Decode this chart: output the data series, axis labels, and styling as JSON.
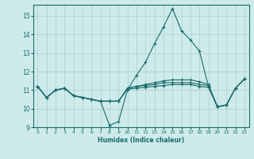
{
  "xlabel": "Humidex (Indice chaleur)",
  "bg_color": "#ceeaea",
  "grid_color": "#afd4d4",
  "line_color": "#1a6b6b",
  "xlim": [
    -0.5,
    23.5
  ],
  "ylim": [
    9,
    15.6
  ],
  "yticks": [
    9,
    10,
    11,
    12,
    13,
    14,
    15
  ],
  "xticks": [
    0,
    1,
    2,
    3,
    4,
    5,
    6,
    7,
    8,
    9,
    10,
    11,
    12,
    13,
    14,
    15,
    16,
    17,
    18,
    19,
    20,
    21,
    22,
    23
  ],
  "lines": [
    {
      "x": [
        0,
        1,
        2,
        3,
        4,
        5,
        6,
        7,
        8,
        9,
        10,
        11,
        12,
        13,
        14,
        15,
        16,
        17,
        18,
        19,
        20,
        21,
        22,
        23
      ],
      "y": [
        11.2,
        10.6,
        11.0,
        11.1,
        10.7,
        10.6,
        10.5,
        10.4,
        9.1,
        9.3,
        11.0,
        11.8,
        12.5,
        13.5,
        14.4,
        15.4,
        14.2,
        13.7,
        13.1,
        11.2,
        10.1,
        10.2,
        11.1,
        11.6
      ]
    },
    {
      "x": [
        0,
        1,
        2,
        3,
        4,
        5,
        6,
        7,
        8,
        9,
        10,
        11,
        12,
        13,
        14,
        15,
        16,
        17,
        18,
        19,
        20,
        21,
        22,
        23
      ],
      "y": [
        11.2,
        10.6,
        11.0,
        11.1,
        10.7,
        10.6,
        10.5,
        10.4,
        10.4,
        10.4,
        11.1,
        11.2,
        11.3,
        11.4,
        11.5,
        11.55,
        11.55,
        11.55,
        11.45,
        11.3,
        10.1,
        10.2,
        11.1,
        11.6
      ]
    },
    {
      "x": [
        0,
        1,
        2,
        3,
        4,
        5,
        6,
        7,
        8,
        9,
        10,
        11,
        12,
        13,
        14,
        15,
        16,
        17,
        18,
        19,
        20,
        21,
        22,
        23
      ],
      "y": [
        11.2,
        10.6,
        11.0,
        11.1,
        10.7,
        10.6,
        10.5,
        10.4,
        10.4,
        10.4,
        11.1,
        11.2,
        11.25,
        11.3,
        11.4,
        11.4,
        11.4,
        11.4,
        11.3,
        11.25,
        10.1,
        10.2,
        11.1,
        11.6
      ]
    },
    {
      "x": [
        0,
        1,
        2,
        3,
        4,
        5,
        6,
        7,
        8,
        9,
        10,
        11,
        12,
        13,
        14,
        15,
        16,
        17,
        18,
        19,
        20,
        21,
        22,
        23
      ],
      "y": [
        11.2,
        10.6,
        11.0,
        11.1,
        10.7,
        10.6,
        10.5,
        10.4,
        10.4,
        10.4,
        11.05,
        11.1,
        11.15,
        11.2,
        11.25,
        11.3,
        11.3,
        11.3,
        11.2,
        11.15,
        10.1,
        10.2,
        11.1,
        11.6
      ]
    }
  ]
}
